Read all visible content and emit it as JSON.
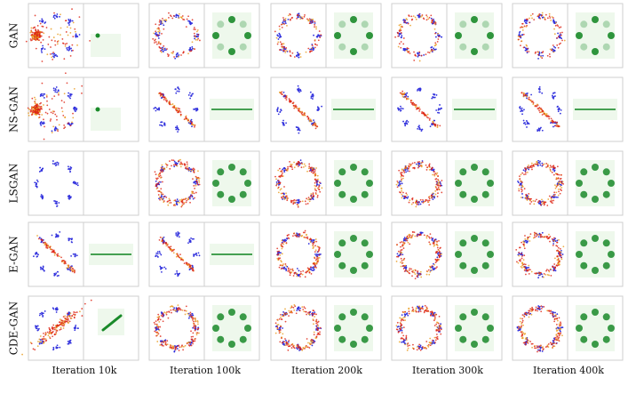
{
  "figure": {
    "rows": [
      {
        "label": "GAN",
        "cells": [
          {
            "mode": "collapse"
          },
          {
            "mode": "ring-partial"
          },
          {
            "mode": "ring-partial"
          },
          {
            "mode": "ring-partial"
          },
          {
            "mode": "ring-partial"
          }
        ]
      },
      {
        "label": "NS-GAN",
        "cells": [
          {
            "mode": "collapse"
          },
          {
            "mode": "line"
          },
          {
            "mode": "line"
          },
          {
            "mode": "line"
          },
          {
            "mode": "line"
          }
        ]
      },
      {
        "label": "LSGAN",
        "cells": [
          {
            "mode": "empty"
          },
          {
            "mode": "ring"
          },
          {
            "mode": "ring"
          },
          {
            "mode": "ring"
          },
          {
            "mode": "ring"
          }
        ]
      },
      {
        "label": "E-GAN",
        "cells": [
          {
            "mode": "line"
          },
          {
            "mode": "line"
          },
          {
            "mode": "ring"
          },
          {
            "mode": "ring"
          },
          {
            "mode": "ring"
          }
        ]
      },
      {
        "label": "CDE-GAN",
        "cells": [
          {
            "mode": "blob"
          },
          {
            "mode": "ring"
          },
          {
            "mode": "ring"
          },
          {
            "mode": "ring"
          },
          {
            "mode": "ring"
          }
        ]
      }
    ],
    "columns": [
      "Iteration 10k",
      "Iteration 100k",
      "Iteration 200k",
      "Iteration 300k",
      "Iteration 400k"
    ],
    "colors": {
      "real": "#3333dd",
      "generated_hot": "#dd2211",
      "generated_mid": "#e89a1a",
      "density": "#1a8a2a",
      "density_bg": "#eef8ec",
      "border": "#cfcfcf"
    }
  }
}
